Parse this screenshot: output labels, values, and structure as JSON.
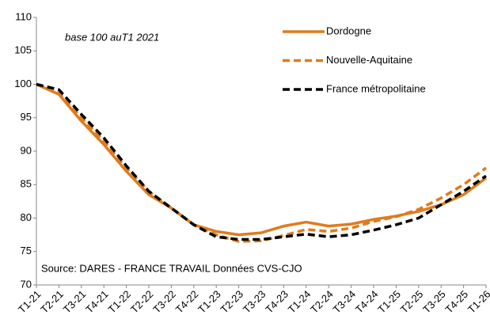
{
  "chart_data": {
    "type": "line",
    "annotations": [
      "base 100  auT1 2021",
      "Source: DARES - FRANCE TRAVAIL  Données CVS-CJO"
    ],
    "categories": [
      "T1-21",
      "T2-21",
      "T3-21",
      "T4-21",
      "T1-22",
      "T2-22",
      "T3-22",
      "T4-22",
      "T1-23",
      "T2-23",
      "T3-23",
      "T4-23",
      "T1-24",
      "T2-24",
      "T3-24",
      "T4-24",
      "T1-25",
      "T2-25",
      "T3-25",
      "T4-25",
      "T1-26"
    ],
    "series": [
      {
        "name": "Dordogne",
        "color": "#e07b1e",
        "dashed": false,
        "values": [
          100,
          98.5,
          94.5,
          91,
          87,
          83.5,
          81.5,
          79,
          78,
          77.5,
          77.8,
          78.8,
          79.4,
          78.8,
          79.1,
          79.8,
          80.3,
          81,
          82,
          83.5,
          86
        ]
      },
      {
        "name": "Nouvelle-Aquitaine",
        "color": "#e07b1e",
        "dashed": true,
        "values": [
          100,
          98.7,
          95,
          91.5,
          87.5,
          84,
          81.5,
          79,
          77.5,
          76.5,
          76.6,
          77.4,
          78.3,
          78,
          78.5,
          79.5,
          80.2,
          81.3,
          83,
          85,
          87.5
        ]
      },
      {
        "name": "France métropolitaine",
        "color": "#000000",
        "dashed": true,
        "values": [
          100,
          99.2,
          95.5,
          92,
          87.8,
          84,
          81.5,
          79,
          77.2,
          76.8,
          76.8,
          77.2,
          77.6,
          77.2,
          77.5,
          78.2,
          79,
          80,
          82,
          84,
          86.3
        ]
      }
    ],
    "ylim": [
      70,
      110
    ],
    "yticks": [
      70,
      75,
      80,
      85,
      90,
      95,
      100,
      105,
      110
    ],
    "grid": false
  }
}
